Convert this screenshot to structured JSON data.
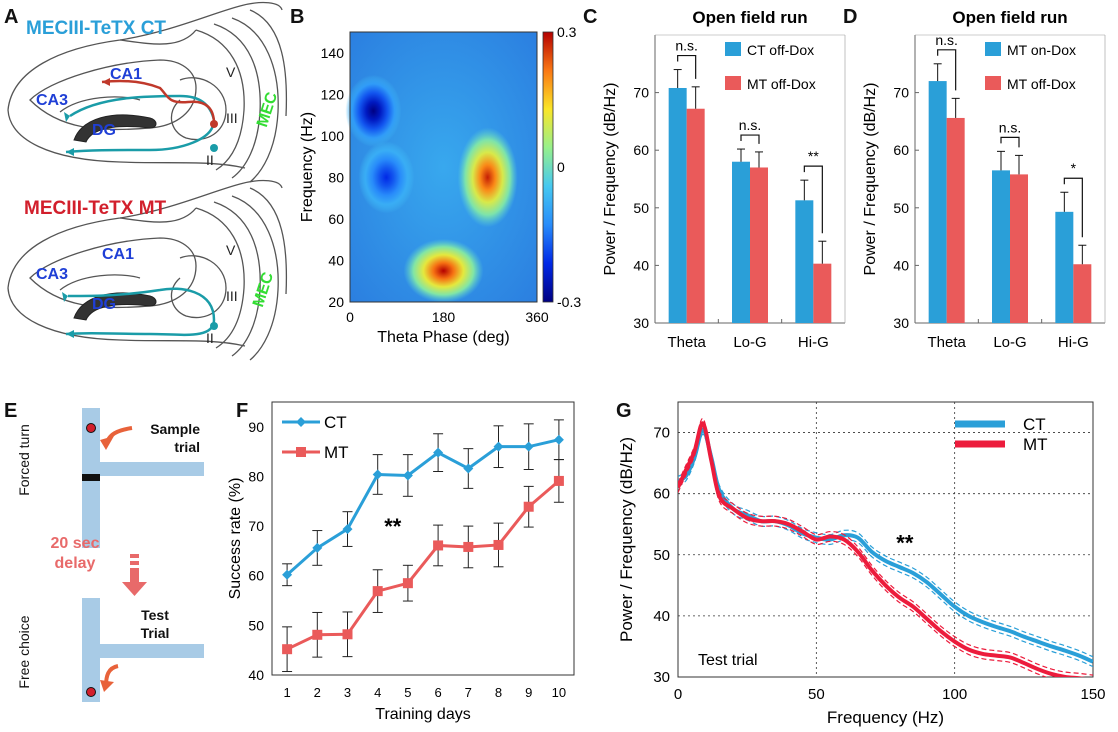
{
  "panels": {
    "A": {
      "letter": "A",
      "top_title": "MECIII-TeTX CT",
      "bottom_title": "MECIII-TeTX MT",
      "regions": [
        "CA1",
        "CA3",
        "DG",
        "MEC",
        "V",
        "III",
        "II"
      ],
      "colors": {
        "ct_title": "#2a9fd8",
        "mt_title": "#d21f2c",
        "region": "#1f3fd6",
        "mec": "#33dd33",
        "teal_path": "#1a9ca8",
        "red_path": "#c0392b"
      }
    },
    "B": {
      "letter": "B"
    },
    "C": {
      "letter": "C"
    },
    "D": {
      "letter": "D"
    },
    "E": {
      "letter": "E",
      "forced_turn": "Forced turn",
      "sample_trial": "Sample trial",
      "delay": "20 sec delay",
      "free_choice": "Free choice",
      "test_trial": "Test Trial",
      "colors": {
        "maze": "#a8cbe6",
        "arrow": "#e8623a",
        "delay": "#e86a6a"
      }
    },
    "F": {
      "letter": "F"
    },
    "G": {
      "letter": "G"
    }
  },
  "chart_data": [
    {
      "id": "B",
      "type": "heatmap",
      "xlabel": "Theta Phase (deg)",
      "ylabel": "Frequency (Hz)",
      "xlim": [
        0,
        360
      ],
      "ylim": [
        20,
        150
      ],
      "xticks": [
        0,
        180,
        360
      ],
      "yticks": [
        20,
        40,
        60,
        80,
        100,
        120,
        140
      ],
      "colorbar": {
        "min": -0.3,
        "max": 0.3,
        "ticks": [
          "0.3",
          "0",
          "-0.3"
        ]
      },
      "blobs": [
        {
          "x": 180,
          "y": 35,
          "value": 0.3
        },
        {
          "x": 265,
          "y": 80,
          "value": 0.28
        },
        {
          "x": 45,
          "y": 112,
          "value": -0.3
        },
        {
          "x": 70,
          "y": 80,
          "value": -0.18
        }
      ]
    },
    {
      "id": "C",
      "type": "bar",
      "title": "Open field run",
      "ylabel": "Power / Frequency (dB/Hz)",
      "categories": [
        "Theta",
        "Lo-G",
        "Hi-G"
      ],
      "ylim": [
        30,
        80
      ],
      "yticks": [
        30,
        40,
        50,
        60,
        70
      ],
      "series": [
        {
          "name": "CT off-Dox",
          "values": [
            70.8,
            58,
            51.3
          ],
          "errors": [
            3.2,
            2.2,
            3.5
          ],
          "color": "#2a9fd8"
        },
        {
          "name": "MT off-Dox",
          "values": [
            67.2,
            57,
            40.3
          ],
          "errors": [
            3.8,
            2.7,
            3.9
          ],
          "color": "#ea5a5a"
        }
      ],
      "annotations": [
        "n.s.",
        "n.s.",
        "**"
      ]
    },
    {
      "id": "D",
      "type": "bar",
      "title": "Open field run",
      "ylabel": "Power / Frequency (dB/Hz)",
      "categories": [
        "Theta",
        "Lo-G",
        "Hi-G"
      ],
      "ylim": [
        30,
        80
      ],
      "yticks": [
        30,
        40,
        50,
        60,
        70
      ],
      "series": [
        {
          "name": "MT on-Dox",
          "values": [
            72,
            56.5,
            49.3
          ],
          "errors": [
            3,
            3.3,
            3.4
          ],
          "color": "#2a9fd8"
        },
        {
          "name": "MT off-Dox",
          "values": [
            65.6,
            55.8,
            40.2
          ],
          "errors": [
            3.4,
            3.3,
            3.3
          ],
          "color": "#ea5a5a"
        }
      ],
      "annotations": [
        "n.s.",
        "n.s.",
        "*"
      ]
    },
    {
      "id": "F",
      "type": "line",
      "xlabel": "Training days",
      "ylabel": "Success rate (%)",
      "x": [
        1,
        2,
        3,
        4,
        5,
        6,
        7,
        8,
        9,
        10
      ],
      "ylim": [
        40,
        95
      ],
      "yticks": [
        40,
        50,
        60,
        70,
        80,
        90
      ],
      "series": [
        {
          "name": "CT",
          "values": [
            60.2,
            65.6,
            69.4,
            80.4,
            80.2,
            84.8,
            81.6,
            86,
            86,
            87.4
          ],
          "errors": [
            2.2,
            3.5,
            3.5,
            4,
            4.2,
            3.8,
            4,
            4.2,
            4.6,
            4
          ],
          "color": "#2a9fd8"
        },
        {
          "name": "MT",
          "values": [
            45.2,
            48.1,
            48.2,
            56.9,
            58.5,
            66.1,
            65.8,
            66.2,
            73.9,
            79.1
          ],
          "errors": [
            4.5,
            4.5,
            4.5,
            4.3,
            3.6,
            4.1,
            4.2,
            4.4,
            4.1,
            4.3
          ],
          "color": "#ea5a5a"
        }
      ],
      "annotation": "**"
    },
    {
      "id": "G",
      "type": "line",
      "xlabel": "Frequency (Hz)",
      "ylabel": "Power / Frequency (dB/Hz)",
      "xlim": [
        0,
        150
      ],
      "ylim": [
        30,
        75
      ],
      "xticks": [
        0,
        50,
        100,
        150
      ],
      "yticks": [
        30,
        40,
        50,
        60,
        70
      ],
      "grid": true,
      "legend": "top-right",
      "annotation": "**",
      "inset_text": "Test trial",
      "series": [
        {
          "name": "CT",
          "color": "#2a9fd8",
          "x": [
            0,
            3,
            6,
            9,
            12,
            15,
            20,
            25,
            30,
            35,
            40,
            45,
            50,
            55,
            60,
            65,
            70,
            75,
            80,
            85,
            90,
            95,
            100,
            105,
            110,
            115,
            120,
            125,
            130,
            135,
            140,
            145,
            150
          ],
          "values": [
            62,
            63,
            66,
            70.5,
            66,
            60.5,
            57.5,
            56.5,
            55.5,
            55.5,
            54.8,
            53.5,
            52.8,
            52.5,
            53.2,
            52.8,
            50.5,
            49,
            48,
            47,
            45.5,
            43.5,
            41.5,
            40,
            39,
            38.2,
            37.5,
            36.6,
            35.8,
            35,
            34.3,
            33.5,
            32.5
          ],
          "band": 0.8
        },
        {
          "name": "MT",
          "color": "#ec1c3c",
          "x": [
            0,
            3,
            6,
            9,
            12,
            15,
            20,
            25,
            30,
            35,
            40,
            45,
            50,
            55,
            60,
            65,
            70,
            75,
            80,
            85,
            90,
            95,
            100,
            105,
            110,
            115,
            120,
            125,
            130,
            135,
            140,
            145,
            150
          ],
          "values": [
            61,
            64,
            67,
            71.5,
            65.5,
            59.5,
            57.5,
            56,
            55.5,
            55.5,
            55,
            53.8,
            52.5,
            53,
            52.5,
            50.5,
            47.5,
            45,
            43,
            41.5,
            39.5,
            37.5,
            35.8,
            34.5,
            33.8,
            33.5,
            33.2,
            32.3,
            31.3,
            30.5,
            30,
            29.8,
            29.5
          ],
          "band": 0.8
        }
      ]
    }
  ]
}
